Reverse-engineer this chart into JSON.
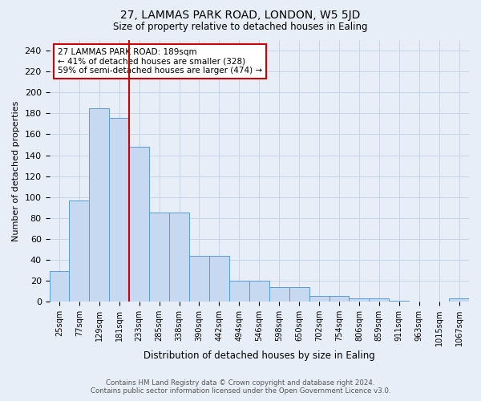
{
  "title1": "27, LAMMAS PARK ROAD, LONDON, W5 5JD",
  "title2": "Size of property relative to detached houses in Ealing",
  "xlabel": "Distribution of detached houses by size in Ealing",
  "ylabel": "Number of detached properties",
  "categories": [
    "25sqm",
    "77sqm",
    "129sqm",
    "181sqm",
    "233sqm",
    "285sqm",
    "338sqm",
    "390sqm",
    "442sqm",
    "494sqm",
    "546sqm",
    "598sqm",
    "650sqm",
    "702sqm",
    "754sqm",
    "806sqm",
    "859sqm",
    "911sqm",
    "963sqm",
    "1015sqm",
    "1067sqm"
  ],
  "values": [
    29,
    97,
    185,
    176,
    148,
    85,
    85,
    44,
    44,
    20,
    20,
    14,
    14,
    6,
    6,
    3,
    3,
    1,
    0,
    0,
    3
  ],
  "bar_color": "#c6d9f0",
  "bar_edge_color": "#5b9bd5",
  "vline_x": 3.5,
  "vline_color": "#cc0000",
  "annotation_text": "27 LAMMAS PARK ROAD: 189sqm\n← 41% of detached houses are smaller (328)\n59% of semi-detached houses are larger (474) →",
  "annotation_box_color": "#ffffff",
  "annotation_box_edge_color": "#cc0000",
  "ylim": [
    0,
    250
  ],
  "yticks": [
    0,
    20,
    40,
    60,
    80,
    100,
    120,
    140,
    160,
    180,
    200,
    220,
    240
  ],
  "grid_color": "#c8d4e8",
  "bg_color": "#e8eef8",
  "footer1": "Contains HM Land Registry data © Crown copyright and database right 2024.",
  "footer2": "Contains public sector information licensed under the Open Government Licence v3.0."
}
